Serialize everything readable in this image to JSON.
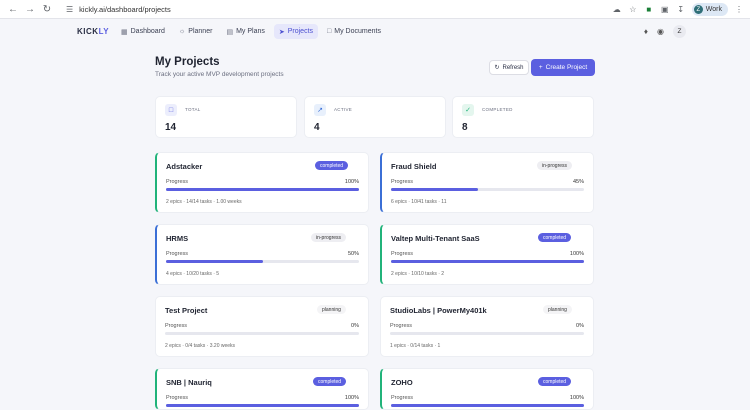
{
  "browser": {
    "url": "kickly.ai/dashboard/projects",
    "profile_initial": "Z",
    "profile_label": "Work"
  },
  "app": {
    "logo_main": "KICK",
    "logo_accent": "LY",
    "nav": [
      {
        "label": "Dashboard",
        "icon": "grid-icon"
      },
      {
        "label": "Planner",
        "icon": "lightbulb-icon"
      },
      {
        "label": "My Plans",
        "icon": "document-icon"
      },
      {
        "label": "Projects",
        "icon": "rocket-icon"
      },
      {
        "label": "My Documents",
        "icon": "file-icon"
      }
    ],
    "user_initial": "Z"
  },
  "page": {
    "title": "My Projects",
    "subtitle": "Track your active MVP development projects",
    "refresh_label": "Refresh",
    "create_label": "Create Project"
  },
  "stats": [
    {
      "label": "TOTAL",
      "value": "14",
      "color": "#5b5fe0"
    },
    {
      "label": "ACTIVE",
      "value": "4",
      "color": "#3b6fd6"
    },
    {
      "label": "COMPLETED",
      "value": "8",
      "color": "#21b37a"
    }
  ],
  "progress_label": "Progress",
  "projects": [
    {
      "name": "Adstacker",
      "status": "completed",
      "percent_text": "100%",
      "progress": 1.0,
      "meta": "2 epics · 14/14 tasks · 1.00 weeks"
    },
    {
      "name": "Fraud Shield",
      "status": "in-progress",
      "percent_text": "45%",
      "progress": 0.45,
      "meta": "6 epics · 10/41 tasks · 11"
    },
    {
      "name": "HRMS",
      "status": "in-progress",
      "percent_text": "50%",
      "progress": 0.5,
      "meta": "4 epics · 10/20 tasks · 5"
    },
    {
      "name": "Valtep Multi-Tenant SaaS",
      "status": "completed",
      "percent_text": "100%",
      "progress": 1.0,
      "meta": "2 epics · 10/10 tasks · 2"
    },
    {
      "name": "Test Project",
      "status": "planning",
      "percent_text": "0%",
      "progress": 0.0,
      "meta": "2 epics · 0/4 tasks · 3.20 weeks"
    },
    {
      "name": "StudioLabs | PowerMy401k",
      "status": "planning",
      "percent_text": "0%",
      "progress": 0.0,
      "meta": "1 epics · 0/14 tasks · 1"
    },
    {
      "name": "SNB | Nauriq",
      "status": "completed",
      "percent_text": "100%",
      "progress": 1.0,
      "meta": ""
    },
    {
      "name": "ZOHO",
      "status": "completed",
      "percent_text": "100%",
      "progress": 1.0,
      "meta": ""
    }
  ]
}
